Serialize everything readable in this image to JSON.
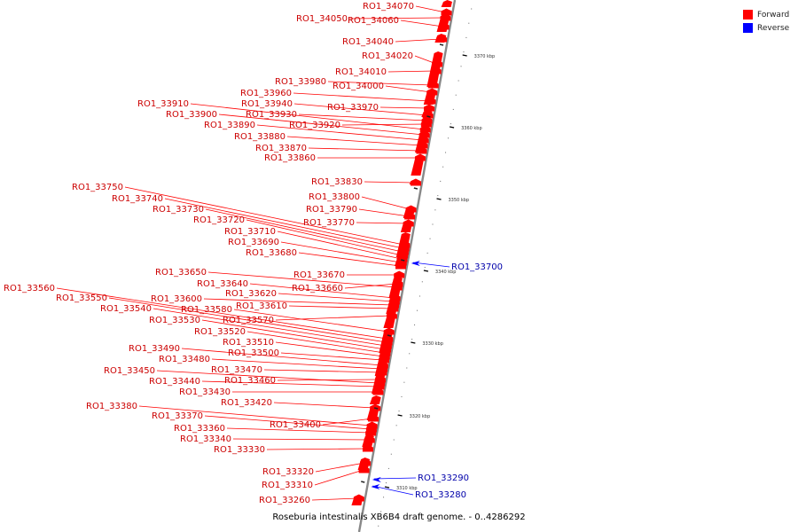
{
  "legend": {
    "forward": {
      "label": "Forward",
      "color": "#ff0000"
    },
    "reverse": {
      "label": "Reverse",
      "color": "#0000ff"
    }
  },
  "caption": {
    "organism": "Roseburia intestinalis XB6B4 draft genome.",
    "range": "- 0..4286292"
  },
  "axis": {
    "ticks": [
      "3310 kbp",
      "3320 kbp",
      "3330 kbp",
      "3340 kbp",
      "3350 kbp",
      "3360 kbp",
      "3370 kbp"
    ]
  },
  "genes": [
    {
      "label": "RO1_34070",
      "strand": "forward"
    },
    {
      "label": "RO1_34050",
      "strand": "forward"
    },
    {
      "label": "RO1_34060",
      "strand": "forward"
    },
    {
      "label": "RO1_34040",
      "strand": "forward"
    },
    {
      "label": "RO1_34020",
      "strand": "forward"
    },
    {
      "label": "RO1_34010",
      "strand": "forward"
    },
    {
      "label": "RO1_33980",
      "strand": "forward"
    },
    {
      "label": "RO1_34000",
      "strand": "forward"
    },
    {
      "label": "RO1_33960",
      "strand": "forward"
    },
    {
      "label": "RO1_33910",
      "strand": "forward"
    },
    {
      "label": "RO1_33940",
      "strand": "forward"
    },
    {
      "label": "RO1_33970",
      "strand": "forward"
    },
    {
      "label": "RO1_33900",
      "strand": "forward"
    },
    {
      "label": "RO1_33930",
      "strand": "forward"
    },
    {
      "label": "RO1_33890",
      "strand": "forward"
    },
    {
      "label": "RO1_33920",
      "strand": "forward"
    },
    {
      "label": "RO1_33880",
      "strand": "forward"
    },
    {
      "label": "RO1_33870",
      "strand": "forward"
    },
    {
      "label": "RO1_33860",
      "strand": "forward"
    },
    {
      "label": "RO1_33830",
      "strand": "forward"
    },
    {
      "label": "RO1_33750",
      "strand": "forward"
    },
    {
      "label": "RO1_33800",
      "strand": "forward"
    },
    {
      "label": "RO1_33740",
      "strand": "forward"
    },
    {
      "label": "RO1_33730",
      "strand": "forward"
    },
    {
      "label": "RO1_33790",
      "strand": "forward"
    },
    {
      "label": "RO1_33720",
      "strand": "forward"
    },
    {
      "label": "RO1_33770",
      "strand": "forward"
    },
    {
      "label": "RO1_33710",
      "strand": "forward"
    },
    {
      "label": "RO1_33690",
      "strand": "forward"
    },
    {
      "label": "RO1_33680",
      "strand": "forward"
    },
    {
      "label": "RO1_33700",
      "strand": "reverse"
    },
    {
      "label": "RO1_33650",
      "strand": "forward"
    },
    {
      "label": "RO1_33670",
      "strand": "forward"
    },
    {
      "label": "RO1_33640",
      "strand": "forward"
    },
    {
      "label": "RO1_33660",
      "strand": "forward"
    },
    {
      "label": "RO1_33560",
      "strand": "forward"
    },
    {
      "label": "RO1_33620",
      "strand": "forward"
    },
    {
      "label": "RO1_33550",
      "strand": "forward"
    },
    {
      "label": "RO1_33600",
      "strand": "forward"
    },
    {
      "label": "RO1_33610",
      "strand": "forward"
    },
    {
      "label": "RO1_33540",
      "strand": "forward"
    },
    {
      "label": "RO1_33580",
      "strand": "forward"
    },
    {
      "label": "RO1_33530",
      "strand": "forward"
    },
    {
      "label": "RO1_33570",
      "strand": "forward"
    },
    {
      "label": "RO1_33520",
      "strand": "forward"
    },
    {
      "label": "RO1_33510",
      "strand": "forward"
    },
    {
      "label": "RO1_33490",
      "strand": "forward"
    },
    {
      "label": "RO1_33500",
      "strand": "forward"
    },
    {
      "label": "RO1_33480",
      "strand": "forward"
    },
    {
      "label": "RO1_33470",
      "strand": "forward"
    },
    {
      "label": "RO1_33450",
      "strand": "forward"
    },
    {
      "label": "RO1_33460",
      "strand": "forward"
    },
    {
      "label": "RO1_33440",
      "strand": "forward"
    },
    {
      "label": "RO1_33430",
      "strand": "forward"
    },
    {
      "label": "RO1_33420",
      "strand": "forward"
    },
    {
      "label": "RO1_33380",
      "strand": "forward"
    },
    {
      "label": "RO1_33370",
      "strand": "forward"
    },
    {
      "label": "RO1_33400",
      "strand": "forward"
    },
    {
      "label": "RO1_33360",
      "strand": "forward"
    },
    {
      "label": "RO1_33340",
      "strand": "forward"
    },
    {
      "label": "RO1_33330",
      "strand": "forward"
    },
    {
      "label": "RO1_33320",
      "strand": "forward"
    },
    {
      "label": "RO1_33290",
      "strand": "reverse"
    },
    {
      "label": "RO1_33310",
      "strand": "forward"
    },
    {
      "label": "RO1_33280",
      "strand": "reverse"
    },
    {
      "label": "RO1_33260",
      "strand": "forward"
    }
  ]
}
